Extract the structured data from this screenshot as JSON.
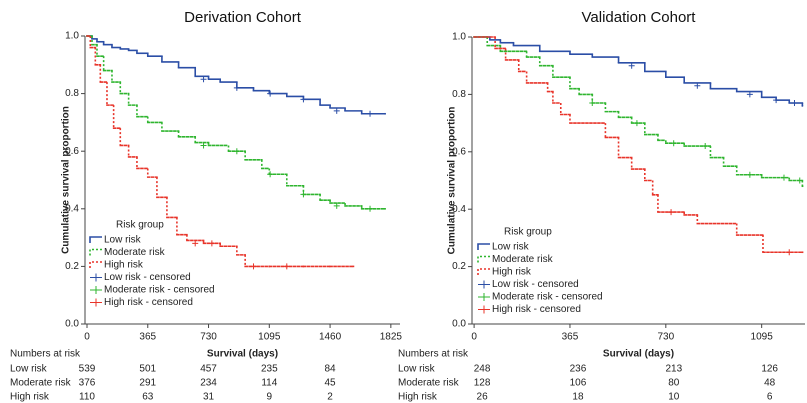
{
  "chart_data": [
    {
      "type": "line",
      "title": "Derivation Cohort",
      "xlabel": "Survival (days)",
      "ylabel": "Cumulative survival proportion",
      "xlim": [
        -12,
        1880
      ],
      "xticks": [
        0,
        365,
        730,
        1095,
        1460,
        1825
      ],
      "ylim": [
        0,
        1
      ],
      "yticks": [
        {
          "value": 0,
          "label": "0.0"
        },
        {
          "value": 0.2,
          "label": "0.2"
        },
        {
          "value": 0.4,
          "label": "0.4"
        },
        {
          "value": 0.6,
          "label": "0.6"
        },
        {
          "value": 0.8,
          "label": "0.8"
        },
        {
          "value": 1,
          "label": "1.0"
        }
      ],
      "step": true,
      "legend_title": "Risk group",
      "legend_loc": "lower left",
      "series": [
        {
          "name": "Low risk",
          "color": "#2b4ea6",
          "line_style": "solid",
          "x": [
            0,
            30,
            60,
            100,
            150,
            200,
            250,
            300,
            365,
            450,
            550,
            650,
            730,
            800,
            900,
            1000,
            1095,
            1200,
            1300,
            1400,
            1460,
            1550,
            1650,
            1790
          ],
          "values": [
            1,
            0.99,
            0.98,
            0.97,
            0.96,
            0.955,
            0.95,
            0.94,
            0.93,
            0.91,
            0.89,
            0.86,
            0.85,
            0.84,
            0.82,
            0.81,
            0.8,
            0.79,
            0.78,
            0.76,
            0.75,
            0.74,
            0.73,
            0.73
          ]
        },
        {
          "name": "Moderate risk",
          "color": "#2fb52f",
          "line_style": "dotted",
          "x": [
            0,
            30,
            60,
            100,
            150,
            200,
            250,
            300,
            365,
            450,
            550,
            650,
            730,
            850,
            950,
            1050,
            1095,
            1200,
            1300,
            1400,
            1460,
            1550,
            1650,
            1790
          ],
          "values": [
            1,
            0.97,
            0.93,
            0.88,
            0.84,
            0.8,
            0.76,
            0.72,
            0.7,
            0.67,
            0.65,
            0.63,
            0.62,
            0.6,
            0.57,
            0.54,
            0.52,
            0.48,
            0.45,
            0.43,
            0.42,
            0.41,
            0.4,
            0.4
          ]
        },
        {
          "name": "High risk",
          "color": "#e8342a",
          "line_style": "dotted",
          "x": [
            0,
            20,
            50,
            80,
            120,
            160,
            200,
            250,
            300,
            365,
            420,
            480,
            540,
            600,
            700,
            800,
            900,
            950,
            1095,
            1300,
            1460,
            1600
          ],
          "values": [
            1,
            0.96,
            0.9,
            0.84,
            0.76,
            0.68,
            0.62,
            0.58,
            0.54,
            0.51,
            0.44,
            0.37,
            0.31,
            0.29,
            0.28,
            0.27,
            0.24,
            0.2,
            0.2,
            0.2,
            0.2,
            0.2
          ]
        },
        {
          "name": "Low risk - censored",
          "color": "#2b4ea6",
          "marker": "+",
          "x": [
            700,
            900,
            1100,
            1300,
            1500,
            1700
          ],
          "values": [
            0.85,
            0.82,
            0.8,
            0.78,
            0.74,
            0.73
          ]
        },
        {
          "name": "Moderate risk - censored",
          "color": "#2fb52f",
          "marker": "+",
          "x": [
            700,
            900,
            1100,
            1300,
            1500,
            1700
          ],
          "values": [
            0.62,
            0.6,
            0.52,
            0.45,
            0.41,
            0.4
          ]
        },
        {
          "name": "High risk - censored",
          "color": "#e8342a",
          "marker": "+",
          "x": [
            650,
            750,
            1000,
            1200
          ],
          "values": [
            0.28,
            0.28,
            0.2,
            0.2
          ]
        }
      ],
      "risk_table": {
        "title": "Numbers at risk",
        "rows": [
          {
            "label": "Low risk",
            "values": [
              539,
              501,
              457,
              235,
              84
            ]
          },
          {
            "label": "Moderate risk",
            "values": [
              376,
              291,
              234,
              114,
              45
            ]
          },
          {
            "label": "High risk",
            "values": [
              110,
              63,
              31,
              9,
              2
            ]
          }
        ]
      }
    },
    {
      "type": "line",
      "title": "Validation Cohort",
      "xlabel": "Survival (days)",
      "ylabel": "Cumulative survival proportion",
      "xlim": [
        -8,
        1260
      ],
      "xticks": [
        0,
        365,
        730,
        1095
      ],
      "ylim": [
        0,
        1
      ],
      "yticks": [
        {
          "value": 0,
          "label": "0.0"
        },
        {
          "value": 0.2,
          "label": "0.2"
        },
        {
          "value": 0.4,
          "label": "0.4"
        },
        {
          "value": 0.6,
          "label": "0.6"
        },
        {
          "value": 0.8,
          "label": "0.8"
        },
        {
          "value": 1,
          "label": "1.0"
        }
      ],
      "step": true,
      "legend_title": "Risk group",
      "legend_loc": "lower left",
      "series": [
        {
          "name": "Low risk",
          "color": "#2b4ea6",
          "line_style": "solid",
          "x": [
            0,
            60,
            100,
            150,
            250,
            365,
            450,
            550,
            650,
            730,
            800,
            900,
            1000,
            1095,
            1150,
            1200,
            1250
          ],
          "values": [
            1,
            0.99,
            0.98,
            0.97,
            0.95,
            0.94,
            0.93,
            0.91,
            0.88,
            0.86,
            0.84,
            0.82,
            0.81,
            0.79,
            0.78,
            0.77,
            0.76
          ]
        },
        {
          "name": "Moderate risk",
          "color": "#2fb52f",
          "line_style": "dotted",
          "x": [
            0,
            50,
            100,
            200,
            250,
            300,
            365,
            400,
            450,
            500,
            550,
            600,
            650,
            700,
            730,
            800,
            900,
            950,
            1000,
            1095,
            1200,
            1250
          ],
          "values": [
            1,
            0.97,
            0.95,
            0.93,
            0.9,
            0.86,
            0.82,
            0.8,
            0.77,
            0.74,
            0.72,
            0.7,
            0.66,
            0.64,
            0.63,
            0.62,
            0.58,
            0.55,
            0.52,
            0.51,
            0.5,
            0.48
          ]
        },
        {
          "name": "High risk",
          "color": "#e8342a",
          "line_style": "dotted",
          "x": [
            0,
            80,
            120,
            170,
            200,
            280,
            300,
            330,
            365,
            500,
            550,
            600,
            650,
            680,
            700,
            800,
            850,
            1000,
            1100,
            1250
          ],
          "values": [
            1,
            0.96,
            0.92,
            0.88,
            0.84,
            0.81,
            0.77,
            0.73,
            0.7,
            0.65,
            0.58,
            0.54,
            0.5,
            0.45,
            0.39,
            0.38,
            0.35,
            0.31,
            0.25,
            0.25
          ]
        },
        {
          "name": "Low risk - censored",
          "color": "#2b4ea6",
          "marker": "+",
          "x": [
            600,
            850,
            1050,
            1150,
            1220
          ],
          "values": [
            0.9,
            0.83,
            0.8,
            0.78,
            0.77
          ]
        },
        {
          "name": "Moderate risk - censored",
          "color": "#2fb52f",
          "marker": "+",
          "x": [
            450,
            620,
            760,
            880,
            1050,
            1180,
            1240
          ],
          "values": [
            0.77,
            0.7,
            0.63,
            0.62,
            0.52,
            0.51,
            0.5
          ]
        },
        {
          "name": "High risk - censored",
          "color": "#e8342a",
          "marker": "+",
          "x": [
            750,
            1200
          ],
          "values": [
            0.39,
            0.25
          ]
        }
      ],
      "risk_table": {
        "title": "Numbers at risk",
        "rows": [
          {
            "label": "Low risk",
            "values": [
              248,
              236,
              213,
              126
            ]
          },
          {
            "label": "Moderate risk",
            "values": [
              128,
              106,
              80,
              48
            ]
          },
          {
            "label": "High risk",
            "values": [
              26,
              18,
              10,
              6
            ]
          }
        ]
      }
    }
  ]
}
